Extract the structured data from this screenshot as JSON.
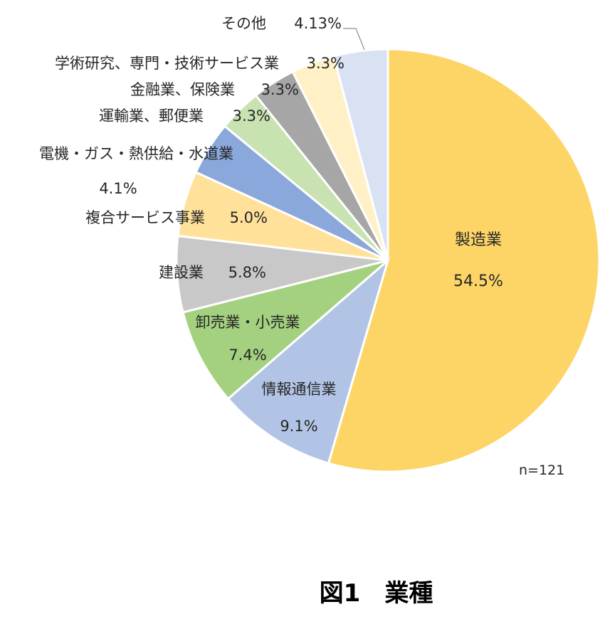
{
  "caption": "図1　業種",
  "sample_note": "n=121",
  "colors": {
    "manufacturing": "#FDD567",
    "info": "#B2C4E6",
    "wholesale": "#A4D17F",
    "construction": "#C8C8C8",
    "composite": "#FFE19A",
    "utility": "#8AA8DB",
    "transport": "#C8E3B1",
    "finance": "#A6A6A6",
    "academic": "#FFF0C6",
    "other": "#D8E2F3"
  },
  "chart_data": {
    "type": "pie",
    "title": "",
    "start_angle_deg": 0,
    "direction": "clockwise",
    "slices": [
      {
        "label": "製造業",
        "value": 54.5,
        "value_label": "54.5%",
        "color_key": "manufacturing"
      },
      {
        "label": "情報通信業",
        "value": 9.1,
        "value_label": "9.1%",
        "color_key": "info"
      },
      {
        "label": "卸売業・小売業",
        "value": 7.4,
        "value_label": "7.4%",
        "color_key": "wholesale"
      },
      {
        "label": "建設業",
        "value": 5.8,
        "value_label": "5.8%",
        "color_key": "construction"
      },
      {
        "label": "複合サービス事業",
        "value": 5.0,
        "value_label": "5.0%",
        "color_key": "composite"
      },
      {
        "label": "電機・ガス・熱供給・水道業",
        "value": 4.1,
        "value_label": "4.1%",
        "color_key": "utility"
      },
      {
        "label": "運輸業、郵便業",
        "value": 3.3,
        "value_label": "3.3%",
        "color_key": "transport"
      },
      {
        "label": "金融業、保険業",
        "value": 3.3,
        "value_label": "3.3%",
        "color_key": "finance"
      },
      {
        "label": "学術研究、専門・技術サービス業",
        "value": 3.3,
        "value_label": "3.3%",
        "color_key": "academic"
      },
      {
        "label": "その他",
        "value": 4.13,
        "value_label": "4.13%",
        "color_key": "other"
      }
    ],
    "legend": "none"
  }
}
